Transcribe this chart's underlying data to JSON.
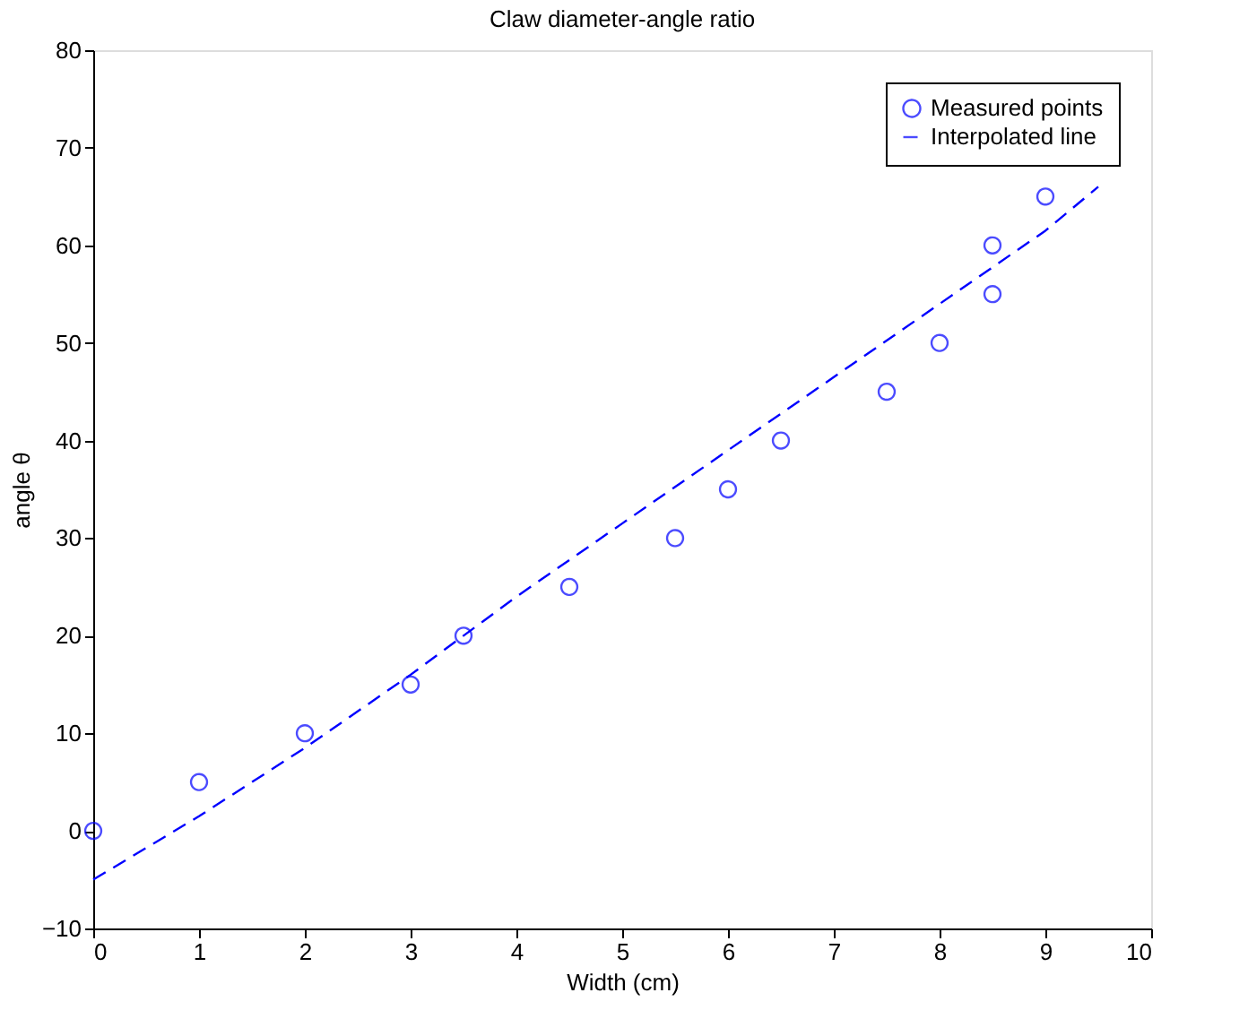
{
  "chart_data": {
    "type": "scatter",
    "title": "Claw diameter-angle ratio",
    "xlabel": "Width (cm)",
    "ylabel": "angle θ",
    "xlim": [
      0,
      10
    ],
    "xticks": [
      0,
      1,
      2,
      3,
      4,
      5,
      6,
      7,
      8,
      9,
      10
    ],
    "ylim": [
      -10,
      80
    ],
    "yticks": [
      -10,
      0,
      10,
      20,
      30,
      40,
      50,
      60,
      70,
      80
    ],
    "grid": false,
    "legend": "top right",
    "series": [
      {
        "name": "Measured points",
        "type": "scatter",
        "marker": "circle",
        "color": "#0000ff",
        "x": [
          0,
          1,
          2,
          3,
          3.5,
          4.5,
          5.5,
          6,
          6.5,
          7.5,
          8,
          8.5,
          8.5,
          9
        ],
        "values": [
          0,
          5,
          10,
          15,
          20,
          25,
          30,
          35,
          40,
          45,
          50,
          55,
          60,
          65
        ]
      },
      {
        "name": "Interpolated line",
        "type": "line",
        "line_style": "dashed",
        "color": "#0000ff",
        "x": [
          0,
          1,
          2,
          3,
          4,
          5,
          6,
          7,
          8,
          9,
          9.5
        ],
        "values": [
          -5,
          1.5,
          8.5,
          16,
          24,
          31.5,
          39,
          46.5,
          54,
          61.5,
          66
        ]
      }
    ]
  }
}
